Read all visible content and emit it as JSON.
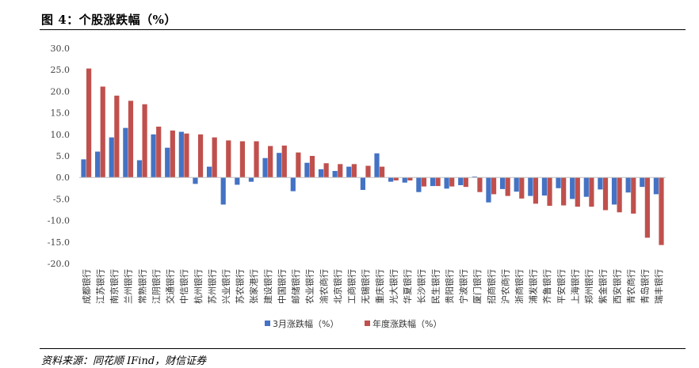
{
  "figure_title": "图 4：个股涨跌幅（%）",
  "source": "资料来源：同花顺 IFind，财信证券",
  "colors": {
    "series1": "#4472c4",
    "series2": "#c0504d",
    "axis": "#bfbfbf"
  },
  "chart_data": {
    "type": "bar",
    "title": "",
    "xlabel": "",
    "ylabel": "",
    "ylim": [
      -20,
      30
    ],
    "yticks": [
      "30.0",
      "25.0",
      "20.0",
      "15.0",
      "10.0",
      "5.0",
      "0.0",
      "-5.0",
      "-10.0",
      "-15.0",
      "-20.0"
    ],
    "legend_position": "bottom",
    "categories": [
      "成都银行",
      "江苏银行",
      "南京银行",
      "兰州银行",
      "常熟银行",
      "江阴银行",
      "交通银行",
      "中信银行",
      "杭州银行",
      "苏州银行",
      "兴业银行",
      "苏农银行",
      "张家港行",
      "建设银行",
      "中国银行",
      "邮储银行",
      "农业银行",
      "渝农商行",
      "北京银行",
      "工商银行",
      "无锡银行",
      "重庆银行",
      "光大银行",
      "华夏银行",
      "长沙银行",
      "民生银行",
      "贵阳银行",
      "宁波银行",
      "厦门银行",
      "招商银行",
      "沪农商行",
      "浙商银行",
      "浦发银行",
      "齐鲁银行",
      "平安银行",
      "上海银行",
      "郑州银行",
      "紫金银行",
      "西安银行",
      "青农商行",
      "青岛银行",
      "瑞丰银行"
    ],
    "series": [
      {
        "name": "3月涨跌幅（%）",
        "values": [
          4.2,
          6.0,
          9.3,
          11.5,
          4.0,
          10.0,
          6.9,
          10.6,
          -1.5,
          2.5,
          -6.3,
          -1.7,
          -1.0,
          4.5,
          5.7,
          -3.2,
          3.4,
          1.9,
          1.5,
          2.5,
          -2.9,
          5.6,
          -1.0,
          -1.2,
          -3.4,
          -2.0,
          -2.6,
          -1.8,
          0.2,
          -5.8,
          -2.7,
          -3.3,
          -4.3,
          -4.2,
          -2.5,
          -5.0,
          -4.5,
          -2.8,
          -6.3,
          -3.5,
          -2.2,
          -3.9
        ]
      },
      {
        "name": "年度涨跌幅（%）",
        "values": [
          25.3,
          21.1,
          19.0,
          17.8,
          17.0,
          11.8,
          10.9,
          10.2,
          10.0,
          9.3,
          8.6,
          8.4,
          8.4,
          7.3,
          7.4,
          5.8,
          5.0,
          3.3,
          3.1,
          3.1,
          2.7,
          2.5,
          -0.7,
          -0.7,
          -2.1,
          -2.0,
          -2.1,
          -2.2,
          -3.4,
          -3.9,
          -4.3,
          -4.9,
          -6.1,
          -6.6,
          -6.5,
          -6.8,
          -6.8,
          -7.6,
          -8.1,
          -8.4,
          -14.0,
          -15.7
        ]
      }
    ]
  }
}
